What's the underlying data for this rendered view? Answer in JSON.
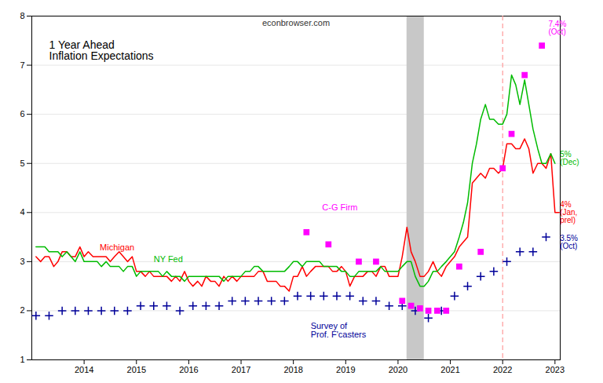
{
  "chart_data": {
    "type": "line",
    "title": "1 Year Ahead\nInflation Expectations",
    "xlim": [
      2013.0,
      2023.1
    ],
    "xticks": [
      2014,
      2015,
      2016,
      2017,
      2018,
      2019,
      2020,
      2021,
      2022,
      2023
    ],
    "ylim": [
      1,
      8
    ],
    "yticks": [
      1,
      2,
      3,
      4,
      5,
      6,
      7,
      8
    ],
    "grid": "y",
    "shaded_spans": [
      {
        "x1": 2020.17,
        "x2": 2020.5,
        "color": "#C8C8C8"
      }
    ],
    "vlines": [
      {
        "x": 2022.0,
        "color": "#FF9999",
        "line_style": "dashed"
      }
    ],
    "series": [
      {
        "name": "Michigan",
        "type": "line",
        "color": "#FF0000",
        "label": {
          "x": 2014.3,
          "y": 3.28
        },
        "x": [
          2013.08,
          2013.17,
          2013.25,
          2013.33,
          2013.42,
          2013.5,
          2013.58,
          2013.67,
          2013.75,
          2013.83,
          2013.92,
          2014.0,
          2014.08,
          2014.17,
          2014.25,
          2014.33,
          2014.42,
          2014.5,
          2014.58,
          2014.67,
          2014.75,
          2014.83,
          2014.92,
          2015.0,
          2015.08,
          2015.17,
          2015.25,
          2015.33,
          2015.42,
          2015.5,
          2015.58,
          2015.67,
          2015.75,
          2015.83,
          2015.92,
          2016.0,
          2016.08,
          2016.17,
          2016.25,
          2016.33,
          2016.42,
          2016.5,
          2016.58,
          2016.67,
          2016.75,
          2016.83,
          2016.92,
          2017.0,
          2017.08,
          2017.17,
          2017.25,
          2017.33,
          2017.42,
          2017.5,
          2017.58,
          2017.67,
          2017.75,
          2017.83,
          2017.92,
          2018.0,
          2018.08,
          2018.17,
          2018.25,
          2018.33,
          2018.42,
          2018.5,
          2018.58,
          2018.67,
          2018.75,
          2018.83,
          2018.92,
          2019.0,
          2019.08,
          2019.17,
          2019.25,
          2019.33,
          2019.42,
          2019.5,
          2019.58,
          2019.67,
          2019.75,
          2019.83,
          2019.92,
          2020.0,
          2020.08,
          2020.17,
          2020.25,
          2020.33,
          2020.42,
          2020.5,
          2020.58,
          2020.67,
          2020.75,
          2020.83,
          2020.92,
          2021.0,
          2021.08,
          2021.17,
          2021.25,
          2021.33,
          2021.42,
          2021.5,
          2021.58,
          2021.67,
          2021.75,
          2021.83,
          2021.92,
          2022.0,
          2022.08,
          2022.17,
          2022.25,
          2022.33,
          2022.42,
          2022.5,
          2022.58,
          2022.67,
          2022.75,
          2022.83,
          2022.92,
          2023.0,
          2023.08
        ],
        "values": [
          3.1,
          3.0,
          3.1,
          3.1,
          2.9,
          3.0,
          3.2,
          3.2,
          3.1,
          3.1,
          3.3,
          3.1,
          3.2,
          3.1,
          3.1,
          3.1,
          3.1,
          3.0,
          3.1,
          3.2,
          3.1,
          3.0,
          3.1,
          2.8,
          2.8,
          2.7,
          2.8,
          2.7,
          2.7,
          2.7,
          2.7,
          2.6,
          2.7,
          2.6,
          2.8,
          2.6,
          2.5,
          2.6,
          2.5,
          2.7,
          2.6,
          2.6,
          2.5,
          2.7,
          2.6,
          2.7,
          2.6,
          2.7,
          2.7,
          2.7,
          2.7,
          2.8,
          2.8,
          2.6,
          2.6,
          2.6,
          2.5,
          2.5,
          2.4,
          2.7,
          2.7,
          2.9,
          2.7,
          2.8,
          2.9,
          2.9,
          2.9,
          2.9,
          2.8,
          2.8,
          2.9,
          2.8,
          2.5,
          2.7,
          2.7,
          2.7,
          2.8,
          2.8,
          2.7,
          2.9,
          2.9,
          2.7,
          2.7,
          2.7,
          3.1,
          3.7,
          3.2,
          3.0,
          2.7,
          2.7,
          2.8,
          3.0,
          2.8,
          2.7,
          2.9,
          3.0,
          3.1,
          3.3,
          3.4,
          3.5,
          4.6,
          4.7,
          4.8,
          4.7,
          4.9,
          4.9,
          4.8,
          4.9,
          5.4,
          5.4,
          5.3,
          5.3,
          5.5,
          5.3,
          4.8,
          5.0,
          5.0,
          4.9,
          5.2,
          4.0,
          4.0
        ]
      },
      {
        "name": "NY Fed",
        "type": "line",
        "color": "#00BB00",
        "label": {
          "x": 2015.33,
          "y": 3.05
        },
        "x": [
          2013.08,
          2013.25,
          2013.33,
          2013.42,
          2013.5,
          2013.58,
          2013.67,
          2013.75,
          2013.83,
          2013.92,
          2014.0,
          2014.08,
          2014.17,
          2014.25,
          2014.33,
          2014.42,
          2014.5,
          2014.58,
          2014.67,
          2014.75,
          2014.83,
          2014.92,
          2015.0,
          2015.08,
          2015.17,
          2015.25,
          2015.33,
          2015.42,
          2015.5,
          2015.58,
          2015.67,
          2015.75,
          2015.83,
          2015.92,
          2016.0,
          2016.08,
          2016.17,
          2016.25,
          2016.33,
          2016.42,
          2016.5,
          2016.58,
          2016.67,
          2016.75,
          2016.83,
          2016.92,
          2017.0,
          2017.08,
          2017.17,
          2017.25,
          2017.33,
          2017.42,
          2017.5,
          2017.58,
          2017.67,
          2017.75,
          2017.83,
          2017.92,
          2018.0,
          2018.08,
          2018.17,
          2018.25,
          2018.33,
          2018.42,
          2018.5,
          2018.58,
          2018.67,
          2018.75,
          2018.83,
          2018.92,
          2019.0,
          2019.08,
          2019.17,
          2019.25,
          2019.33,
          2019.42,
          2019.5,
          2019.58,
          2019.67,
          2019.75,
          2019.83,
          2019.92,
          2020.0,
          2020.08,
          2020.17,
          2020.25,
          2020.33,
          2020.42,
          2020.5,
          2020.58,
          2020.67,
          2020.75,
          2020.83,
          2020.92,
          2021.0,
          2021.08,
          2021.17,
          2021.25,
          2021.33,
          2021.42,
          2021.5,
          2021.58,
          2021.67,
          2021.75,
          2021.83,
          2021.92,
          2022.0,
          2022.08,
          2022.17,
          2022.25,
          2022.33,
          2022.42,
          2022.5,
          2022.58,
          2022.67,
          2022.75,
          2022.83,
          2022.92,
          2023.0
        ],
        "values": [
          3.3,
          3.3,
          3.2,
          3.2,
          3.2,
          3.1,
          3.2,
          3.1,
          3.0,
          3.2,
          3.0,
          3.0,
          3.0,
          3.0,
          2.9,
          3.0,
          2.9,
          2.9,
          2.9,
          2.8,
          2.9,
          2.9,
          2.7,
          2.8,
          2.8,
          2.8,
          2.8,
          2.8,
          2.7,
          2.8,
          2.7,
          2.7,
          2.7,
          2.6,
          2.7,
          2.7,
          2.7,
          2.7,
          2.7,
          2.7,
          2.7,
          2.7,
          2.6,
          2.7,
          2.7,
          2.7,
          2.7,
          2.8,
          2.8,
          2.9,
          2.9,
          2.8,
          2.8,
          2.8,
          2.8,
          2.8,
          2.8,
          2.9,
          3.0,
          3.0,
          2.9,
          3.0,
          3.0,
          3.0,
          3.0,
          2.9,
          2.9,
          2.9,
          2.9,
          2.8,
          2.8,
          2.7,
          2.7,
          2.8,
          2.8,
          2.8,
          2.8,
          2.8,
          2.9,
          2.8,
          2.8,
          2.8,
          2.8,
          2.9,
          3.0,
          3.0,
          2.7,
          2.5,
          2.5,
          2.6,
          2.8,
          2.8,
          2.9,
          3.0,
          3.1,
          3.2,
          3.5,
          3.8,
          4.2,
          5.0,
          5.4,
          5.9,
          6.2,
          5.9,
          5.9,
          5.8,
          5.8,
          6.0,
          6.8,
          6.6,
          6.2,
          6.7,
          6.2,
          5.7,
          5.3,
          5.0,
          5.0,
          5.2,
          5.0
        ]
      },
      {
        "name": "Survey of\nProf. F'casters",
        "type": "scatter",
        "marker": "plus",
        "color": "#000099",
        "label": {
          "x": 2018.33,
          "y": 1.6
        },
        "x": [
          2013.08,
          2013.33,
          2013.58,
          2013.83,
          2014.08,
          2014.33,
          2014.58,
          2014.83,
          2015.08,
          2015.33,
          2015.58,
          2015.83,
          2016.08,
          2016.33,
          2016.58,
          2016.83,
          2017.08,
          2017.33,
          2017.58,
          2017.83,
          2018.08,
          2018.33,
          2018.58,
          2018.83,
          2019.08,
          2019.33,
          2019.58,
          2019.83,
          2020.08,
          2020.33,
          2020.58,
          2020.83,
          2021.08,
          2021.33,
          2021.58,
          2021.83,
          2022.08,
          2022.33,
          2022.58,
          2022.83
        ],
        "values": [
          1.9,
          1.9,
          2.0,
          2.0,
          2.0,
          2.0,
          2.0,
          2.0,
          2.1,
          2.1,
          2.1,
          2.0,
          2.1,
          2.1,
          2.1,
          2.2,
          2.2,
          2.2,
          2.2,
          2.2,
          2.3,
          2.3,
          2.3,
          2.3,
          2.3,
          2.2,
          2.2,
          2.1,
          2.1,
          2.0,
          1.85,
          2.0,
          2.3,
          2.5,
          2.7,
          2.8,
          3.0,
          3.2,
          3.2,
          3.5
        ]
      },
      {
        "name": "C-G Firm",
        "type": "scatter",
        "marker": "square",
        "color": "#FF00FF",
        "label": {
          "x": 2018.55,
          "y": 4.1
        },
        "x": [
          2018.25,
          2018.67,
          2019.25,
          2019.58,
          2020.08,
          2020.25,
          2020.42,
          2020.58,
          2020.75,
          2020.92,
          2021.17,
          2021.58,
          2022.0,
          2022.17,
          2022.42,
          2022.75
        ],
        "values": [
          3.6,
          3.35,
          3.0,
          3.0,
          2.2,
          2.1,
          2.05,
          2.0,
          2.0,
          2.0,
          2.9,
          3.2,
          4.9,
          5.6,
          6.8,
          7.4
        ]
      }
    ],
    "annotations": [
      {
        "text": "econbrowser.com",
        "color": "#333333"
      },
      {
        "text": "7.4%\n(Oct)",
        "x": 2022.83,
        "y": 7.75,
        "color": "#FF00FF"
      },
      {
        "text": "5%\n(Dec)",
        "x": 2023.05,
        "y": 5.1,
        "color": "#00BB00"
      },
      {
        "text": "4%\n(Jan,\nprel)",
        "x": 2023.05,
        "y": 4.0,
        "color": "#FF0000"
      },
      {
        "text": "3.5%\n(Oct)",
        "x": 2023.05,
        "y": 3.4,
        "color": "#000099"
      }
    ]
  }
}
